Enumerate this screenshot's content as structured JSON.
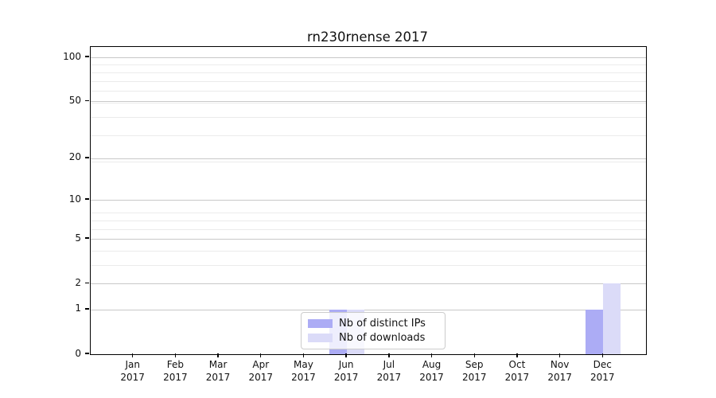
{
  "chart_data": {
    "type": "bar",
    "title": "rn230rnense 2017",
    "categories": [
      "Jan 2017",
      "Feb 2017",
      "Mar 2017",
      "Apr 2017",
      "May 2017",
      "Jun 2017",
      "Jul 2017",
      "Aug 2017",
      "Sep 2017",
      "Oct 2017",
      "Nov 2017",
      "Dec 2017"
    ],
    "series": [
      {
        "name": "Nb of distinct IPs",
        "color": "#acacf5",
        "values": [
          0,
          0,
          0,
          0,
          0,
          1,
          0,
          0,
          0,
          0,
          0,
          1
        ]
      },
      {
        "name": "Nb of downloads",
        "color": "#dbdbf8",
        "values": [
          0,
          0,
          0,
          0,
          0,
          1,
          0,
          0,
          0,
          0,
          0,
          2
        ]
      }
    ],
    "xlabel": "",
    "ylabel": "",
    "y_axis": {
      "scale": "log10(value+1)",
      "tick_values": [
        0,
        1,
        2,
        5,
        10,
        20,
        50,
        100
      ],
      "tick_labels": [
        "0",
        "1",
        "2",
        "5",
        "10",
        "20",
        "50",
        "100"
      ],
      "minor_gridline_axis_values": [
        2,
        3,
        4,
        5,
        6,
        7,
        8,
        9,
        20,
        30,
        40,
        50,
        60,
        70,
        80,
        90
      ],
      "range": [
        0,
        117
      ]
    },
    "grid": "on",
    "legend": {
      "position": "inside-bottom-center",
      "entries": [
        "Nb of distinct IPs",
        "Nb of downloads"
      ]
    },
    "colors": {
      "major_grid": "#c8c8c8",
      "minor_grid": "#ebebeb",
      "spine": "#000000"
    }
  }
}
